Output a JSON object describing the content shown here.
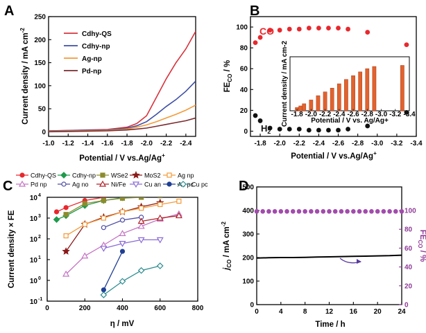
{
  "chart_data": [
    {
      "panel": "A",
      "type": "line",
      "xlabel": "Potential / V vs.Ag/Ag+",
      "ylabel": "Current density / mA cm-2",
      "xlim": [
        -1.0,
        -2.5
      ],
      "ylim": [
        -10,
        250
      ],
      "xticks": [
        "-1.0",
        "-1.2",
        "-1.4",
        "-1.6",
        "-1.8",
        "-2.0",
        "-2.2",
        "-2.4"
      ],
      "yticks": [
        "0",
        "50",
        "100",
        "150",
        "200",
        "250"
      ],
      "legend_position": "top-left",
      "series": [
        {
          "name": "Cdhy-QS",
          "color": "#d8323c",
          "x": [
            -1.0,
            -1.6,
            -1.8,
            -1.9,
            -2.0,
            -2.1,
            -2.2,
            -2.3,
            -2.4,
            -2.5
          ],
          "y": [
            2,
            5,
            10,
            18,
            35,
            75,
            115,
            150,
            180,
            218
          ]
        },
        {
          "name": "Cdhy-np",
          "color": "#3d4ea6",
          "x": [
            -1.0,
            -1.6,
            -1.8,
            -1.9,
            -2.0,
            -2.1,
            -2.2,
            -2.3,
            -2.4,
            -2.5
          ],
          "y": [
            2,
            4,
            8,
            13,
            22,
            38,
            55,
            70,
            88,
            110
          ]
        },
        {
          "name": "Ag-np",
          "color": "#f39a38",
          "x": [
            -1.0,
            -1.6,
            -1.8,
            -1.9,
            -2.0,
            -2.1,
            -2.2,
            -2.3,
            -2.4,
            -2.5
          ],
          "y": [
            1,
            3,
            6,
            10,
            15,
            22,
            30,
            38,
            47,
            58
          ]
        },
        {
          "name": "Pd-np",
          "color": "#7a2a2e",
          "x": [
            -1.0,
            -1.6,
            -1.8,
            -1.9,
            -2.0,
            -2.1,
            -2.2,
            -2.3,
            -2.4,
            -2.5
          ],
          "y": [
            0,
            2,
            4,
            6,
            8,
            12,
            16,
            20,
            24,
            30
          ]
        }
      ]
    },
    {
      "panel": "B",
      "type": "scatter",
      "xlabel": "Potential / V vs.Ag/Ag+",
      "ylabel": "FECO / %",
      "xlim": [
        -1.7,
        -3.4
      ],
      "ylim": [
        -5,
        110
      ],
      "xticks": [
        "-1.8",
        "-2.0",
        "-2.2",
        "-2.4",
        "-2.6",
        "-2.8",
        "-3.0",
        "-3.2",
        "-3.4"
      ],
      "yticks": [
        "0",
        "20",
        "40",
        "60",
        "80",
        "100"
      ],
      "series": [
        {
          "name": "CO",
          "color": "#e8282d",
          "x": [
            -1.75,
            -1.8,
            -1.9,
            -2.0,
            -2.1,
            -2.2,
            -2.3,
            -2.4,
            -2.5,
            -2.6,
            -2.7,
            -2.9,
            -3.3
          ],
          "y": [
            85,
            90,
            97,
            97,
            98,
            98,
            99,
            99,
            99,
            99,
            98,
            95,
            83
          ]
        },
        {
          "name": "H2",
          "color": "#111111",
          "x": [
            -1.75,
            -1.8,
            -1.9,
            -2.0,
            -2.1,
            -2.2,
            -2.3,
            -2.4,
            -2.5,
            -2.6,
            -2.7,
            -2.9,
            -3.3
          ],
          "y": [
            15,
            10,
            3,
            2,
            2,
            2,
            1,
            1,
            1,
            1,
            2,
            5,
            18
          ]
        }
      ],
      "inset": {
        "type": "bar",
        "xlabel": "Potential / V vs. Ag/Ag+",
        "ylabel": "Current density / mA cm-2",
        "xticks": [
          "-1.8",
          "-2.0",
          "-2.2",
          "-2.4",
          "-2.6",
          "-2.8",
          "-3.0",
          "-3.2",
          "-3.4"
        ],
        "xlim": [
          -1.7,
          -3.4
        ],
        "ylim": [
          0,
          100
        ],
        "color": "#e2622d",
        "x": [
          -1.8,
          -1.85,
          -1.9,
          -2.0,
          -2.1,
          -2.2,
          -2.3,
          -2.4,
          -2.5,
          -2.6,
          -2.7,
          -2.8,
          -2.9,
          -3.3
        ],
        "y": [
          6,
          9,
          13,
          20,
          28,
          35,
          42,
          50,
          58,
          65,
          72,
          78,
          82,
          84
        ]
      }
    },
    {
      "panel": "C",
      "type": "scatter",
      "yscale": "log",
      "xlabel": "η / mV",
      "ylabel": "Current density × FE",
      "xlim": [
        0,
        800
      ],
      "ylim_exp": [
        -1,
        4
      ],
      "xticks": [
        "0",
        "200",
        "400",
        "600",
        "800"
      ],
      "yticks": [
        "10-1",
        "100",
        "101",
        "102",
        "103",
        "104"
      ],
      "legend_position": "top",
      "series": [
        {
          "name": "Cdhy-QS",
          "color": "#e8282d",
          "marker": "circle",
          "filled": true,
          "x": [
            50,
            100,
            200,
            300,
            400,
            500,
            600,
            700
          ],
          "y": [
            2000,
            3200,
            7000,
            10000,
            13000,
            15000,
            18000,
            21000
          ]
        },
        {
          "name": "Cdhy-np",
          "color": "#1e9b4c",
          "marker": "diamond",
          "filled": true,
          "x": [
            50,
            100,
            200,
            300,
            400,
            500,
            600,
            700
          ],
          "y": [
            850,
            1300,
            4000,
            7000,
            9500,
            11500,
            13500,
            15500
          ]
        },
        {
          "name": "WSe2",
          "color": "#8c8c2e",
          "marker": "square",
          "filled": true,
          "x": [
            100,
            200,
            300,
            400,
            500,
            600,
            700
          ],
          "y": [
            1500,
            5000,
            7000,
            9000,
            10000,
            12000,
            13000
          ]
        },
        {
          "name": "MoS2",
          "color": "#8b1a1a",
          "marker": "star",
          "filled": true,
          "x": [
            100,
            200,
            300,
            400,
            500,
            600
          ],
          "y": [
            25,
            500,
            1100,
            2000,
            3500,
            5500
          ]
        },
        {
          "name": "Ag np",
          "color": "#f39a38",
          "marker": "square",
          "filled": false,
          "x": [
            100,
            200,
            300,
            400,
            500,
            600,
            700
          ],
          "y": [
            140,
            500,
            1000,
            2000,
            3000,
            4500,
            6500
          ]
        },
        {
          "name": "Pd np",
          "color": "#c473c4",
          "marker": "triangle-up",
          "filled": false,
          "x": [
            100,
            200,
            300,
            400,
            500,
            600,
            700
          ],
          "y": [
            2,
            15,
            50,
            180,
            400,
            900,
            1600
          ]
        },
        {
          "name": "Ag no",
          "color": "#4c4ca6",
          "marker": "circle",
          "filled": false,
          "x": [
            300,
            400,
            500
          ],
          "y": [
            350,
            800,
            1100
          ]
        },
        {
          "name": "Ni/Fe",
          "color": "#b0202a",
          "marker": "triangle-up",
          "filled": false,
          "x": [
            500,
            600,
            700
          ],
          "y": [
            700,
            1000,
            1300
          ]
        },
        {
          "name": "Cu an",
          "color": "#8a6ad6",
          "marker": "triangle-down",
          "filled": false,
          "x": [
            300,
            400,
            500,
            600
          ],
          "y": [
            35,
            60,
            90,
            90
          ]
        },
        {
          "name": "Au pc",
          "color": "#1f3f94",
          "marker": "circle",
          "filled": true,
          "x": [
            300,
            400
          ],
          "y": [
            0.35,
            25
          ]
        },
        {
          "name": "Cu pc",
          "color": "#2c8c90",
          "marker": "diamond",
          "filled": false,
          "x": [
            300,
            400,
            500,
            600
          ],
          "y": [
            0.2,
            0.9,
            3,
            5
          ]
        }
      ]
    },
    {
      "panel": "D",
      "type": "line+scatter",
      "xlabel": "Time / h",
      "ylabel_left": "j CO / mA cm-2",
      "ylabel_right": "FECO / %",
      "xlim": [
        0,
        24
      ],
      "ylim_left": [
        0,
        500
      ],
      "ylim_right": [
        0,
        125
      ],
      "xticks": [
        "0",
        "4",
        "8",
        "12",
        "16",
        "20",
        "24"
      ],
      "yticks_left": [
        "0",
        "100",
        "200",
        "300",
        "400",
        "500"
      ],
      "yticks_right": [
        "0",
        "20",
        "40",
        "60",
        "80",
        "100"
      ],
      "right_color": "#8e3a96",
      "series": [
        {
          "name": "jCO",
          "axis": "left",
          "color": "#000000",
          "x": [
            0,
            2,
            4,
            6,
            8,
            10,
            12,
            14,
            16,
            18,
            20,
            22,
            24
          ],
          "y": [
            198,
            199,
            200,
            200,
            201,
            202,
            203,
            204,
            205,
            206,
            207,
            208,
            210
          ]
        },
        {
          "name": "FECO",
          "axis": "right",
          "color": "#a24bad",
          "x": [
            0,
            1,
            2,
            3,
            4,
            5,
            6,
            7,
            8,
            9,
            10,
            11,
            12,
            13,
            14,
            15,
            16,
            17,
            18,
            19,
            20,
            21,
            22,
            23,
            24
          ],
          "y": [
            99,
            99,
            99,
            99,
            99,
            99,
            99,
            99,
            99,
            99,
            99,
            99,
            99,
            99,
            99,
            99,
            99,
            99,
            99,
            99,
            99,
            99,
            99,
            99,
            99
          ]
        }
      ]
    }
  ]
}
